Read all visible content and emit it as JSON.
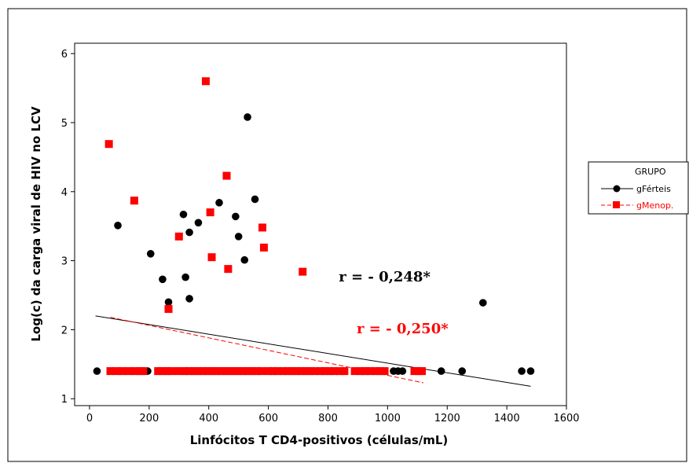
{
  "chart_data": {
    "type": "scatter",
    "xlabel": "Linfócitos T CD4-positivos (células/mL)",
    "ylabel": "Log(c) da carga viral de HIV no LCV",
    "xlim": [
      -50,
      1600
    ],
    "ylim": [
      0.9,
      6.15
    ],
    "x_ticks": [
      0,
      200,
      400,
      600,
      800,
      1000,
      1200,
      1400,
      1600
    ],
    "y_ticks": [
      1,
      2,
      3,
      4,
      5,
      6
    ],
    "grid": false,
    "legend": {
      "title": "GRUPO",
      "placement": "right",
      "entries": [
        "gFérteis",
        "gMenop."
      ]
    },
    "series": [
      {
        "name": "gFérteis",
        "color": "#000000",
        "marker": "circle",
        "trendline": {
          "style": "solid",
          "x": [
            20,
            1480
          ],
          "y": [
            2.2,
            1.18
          ]
        },
        "points": [
          [
            95,
            3.51
          ],
          [
            205,
            3.1
          ],
          [
            245,
            2.73
          ],
          [
            265,
            2.4
          ],
          [
            315,
            3.67
          ],
          [
            322,
            2.76
          ],
          [
            335,
            3.41
          ],
          [
            335,
            2.45
          ],
          [
            365,
            3.55
          ],
          [
            435,
            3.84
          ],
          [
            490,
            3.64
          ],
          [
            500,
            3.35
          ],
          [
            520,
            3.01
          ],
          [
            530,
            5.08
          ],
          [
            555,
            3.89
          ],
          [
            1320,
            2.39
          ],
          [
            25,
            1.4
          ],
          [
            195,
            1.4
          ],
          [
            298,
            1.4
          ],
          [
            565,
            1.4
          ],
          [
            590,
            1.4
          ],
          [
            640,
            1.4
          ],
          [
            765,
            1.4
          ],
          [
            1020,
            1.4
          ],
          [
            1035,
            1.4
          ],
          [
            1050,
            1.4
          ],
          [
            1180,
            1.4
          ],
          [
            1250,
            1.4
          ],
          [
            1450,
            1.4
          ],
          [
            1480,
            1.4
          ]
        ]
      },
      {
        "name": "gMenop.",
        "color": "#ff0000",
        "marker": "square",
        "trendline": {
          "style": "dashed",
          "x": [
            70,
            1120
          ],
          "y": [
            2.18,
            1.23
          ]
        },
        "points": [
          [
            65,
            4.69
          ],
          [
            150,
            3.87
          ],
          [
            265,
            2.3
          ],
          [
            300,
            3.35
          ],
          [
            390,
            5.6
          ],
          [
            405,
            3.7
          ],
          [
            410,
            3.05
          ],
          [
            460,
            4.23
          ],
          [
            465,
            2.88
          ],
          [
            580,
            3.48
          ],
          [
            585,
            3.19
          ],
          [
            715,
            2.84
          ],
          [
            70,
            1.4
          ],
          [
            90,
            1.4
          ],
          [
            110,
            1.4
          ],
          [
            130,
            1.4
          ],
          [
            150,
            1.4
          ],
          [
            170,
            1.4
          ],
          [
            180,
            1.4
          ],
          [
            230,
            1.4
          ],
          [
            245,
            1.4
          ],
          [
            260,
            1.4
          ],
          [
            275,
            1.4
          ],
          [
            300,
            1.4
          ],
          [
            320,
            1.4
          ],
          [
            335,
            1.4
          ],
          [
            350,
            1.4
          ],
          [
            365,
            1.4
          ],
          [
            380,
            1.4
          ],
          [
            395,
            1.4
          ],
          [
            410,
            1.4
          ],
          [
            425,
            1.4
          ],
          [
            440,
            1.4
          ],
          [
            455,
            1.4
          ],
          [
            470,
            1.4
          ],
          [
            485,
            1.4
          ],
          [
            500,
            1.4
          ],
          [
            515,
            1.4
          ],
          [
            530,
            1.4
          ],
          [
            545,
            1.4
          ],
          [
            560,
            1.4
          ],
          [
            575,
            1.4
          ],
          [
            600,
            1.4
          ],
          [
            615,
            1.4
          ],
          [
            630,
            1.4
          ],
          [
            650,
            1.4
          ],
          [
            665,
            1.4
          ],
          [
            680,
            1.4
          ],
          [
            695,
            1.4
          ],
          [
            710,
            1.4
          ],
          [
            725,
            1.4
          ],
          [
            740,
            1.4
          ],
          [
            755,
            1.4
          ],
          [
            775,
            1.4
          ],
          [
            790,
            1.4
          ],
          [
            805,
            1.4
          ],
          [
            820,
            1.4
          ],
          [
            840,
            1.4
          ],
          [
            855,
            1.4
          ],
          [
            890,
            1.4
          ],
          [
            910,
            1.4
          ],
          [
            925,
            1.4
          ],
          [
            940,
            1.4
          ],
          [
            960,
            1.4
          ],
          [
            975,
            1.4
          ],
          [
            990,
            1.4
          ],
          [
            1090,
            1.4
          ],
          [
            1105,
            1.4
          ],
          [
            1115,
            1.4
          ]
        ]
      }
    ],
    "annotations": [
      {
        "text": "r = - 0,248*",
        "color": "#000000",
        "x": 990,
        "y": 2.7
      },
      {
        "text": "r = - 0,250*",
        "color": "#ff0000",
        "x": 1050,
        "y": 1.95
      }
    ]
  }
}
